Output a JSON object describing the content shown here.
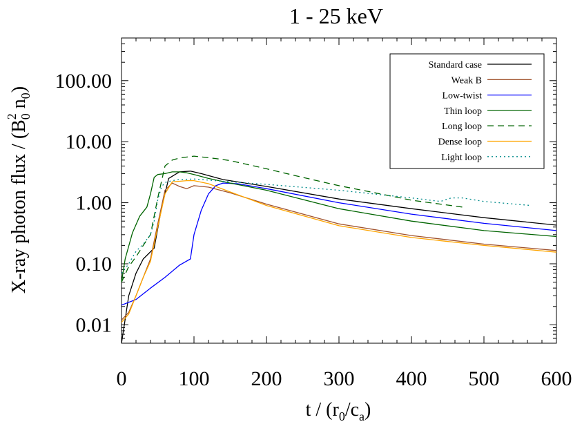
{
  "chart_data": {
    "type": "line",
    "title": "1 - 25 keV",
    "xlabel_parts": {
      "main": "t / (r",
      "sub1": "0",
      "mid": "/c",
      "sub2": "a",
      "end": ")"
    },
    "ylabel_parts": {
      "main": "X-ray photon flux / (B",
      "sub1": "0",
      "sup": "2",
      "mid": " n",
      "sub2": "0",
      "end": ")"
    },
    "xlim": [
      0,
      600
    ],
    "ylim": [
      0.005,
      500
    ],
    "yscale": "log",
    "x_ticks": [
      0,
      100,
      200,
      300,
      400,
      500,
      600
    ],
    "x_tick_labels": [
      "0",
      "100",
      "200",
      "300",
      "400",
      "500",
      "600"
    ],
    "y_ticks": [
      0.01,
      0.1,
      1,
      10,
      100
    ],
    "y_tick_labels": [
      "0.01",
      "0.10",
      "1.00",
      "10.00",
      "100.00"
    ],
    "legend_position": "top-right",
    "series": [
      {
        "name": "Standard case",
        "color": "#000000",
        "dash": "solid",
        "x": [
          0,
          10,
          20,
          30,
          45,
          55,
          65,
          80,
          95,
          110,
          140,
          200,
          300,
          400,
          500,
          600
        ],
        "y": [
          0.005,
          0.03,
          0.07,
          0.12,
          0.18,
          0.8,
          2.5,
          3.2,
          3.3,
          3.0,
          2.4,
          1.85,
          1.15,
          0.8,
          0.57,
          0.43
        ]
      },
      {
        "name": "Weak B",
        "color": "#a0522d",
        "dash": "solid",
        "x": [
          0,
          10,
          20,
          30,
          40,
          50,
          60,
          70,
          80,
          90,
          100,
          120,
          150,
          200,
          300,
          400,
          500,
          600
        ],
        "y": [
          0.012,
          0.016,
          0.03,
          0.06,
          0.12,
          0.45,
          1.6,
          2.1,
          1.85,
          1.7,
          1.9,
          1.8,
          1.45,
          0.95,
          0.45,
          0.29,
          0.21,
          0.165
        ]
      },
      {
        "name": "Low-twist",
        "color": "#0000ff",
        "dash": "solid",
        "x": [
          0,
          20,
          40,
          60,
          80,
          95,
          100,
          110,
          120,
          130,
          140,
          160,
          200,
          300,
          400,
          500,
          600
        ],
        "y": [
          0.021,
          0.026,
          0.04,
          0.06,
          0.095,
          0.12,
          0.3,
          0.75,
          1.4,
          1.9,
          2.1,
          2.05,
          1.7,
          1.0,
          0.65,
          0.46,
          0.35
        ]
      },
      {
        "name": "Thin loop",
        "color": "#006400",
        "dash": "solid",
        "x": [
          0,
          5,
          15,
          25,
          35,
          40,
          45,
          50,
          60,
          70,
          80,
          90,
          100,
          120,
          150,
          200,
          300,
          400,
          500,
          600
        ],
        "y": [
          0.05,
          0.12,
          0.32,
          0.6,
          0.85,
          1.4,
          2.6,
          2.9,
          3.0,
          3.2,
          3.2,
          3.1,
          2.9,
          2.5,
          2.1,
          1.6,
          0.8,
          0.5,
          0.35,
          0.28
        ]
      },
      {
        "name": "Long loop",
        "color": "#006400",
        "dash": "dashed",
        "x": [
          0,
          10,
          20,
          30,
          40,
          50,
          60,
          70,
          80,
          100,
          130,
          150,
          200,
          250,
          300,
          350,
          400,
          440,
          470
        ],
        "y": [
          0.05,
          0.09,
          0.13,
          0.2,
          0.3,
          1.2,
          4.0,
          5.0,
          5.4,
          5.8,
          5.3,
          4.9,
          3.6,
          2.6,
          1.9,
          1.45,
          1.1,
          0.95,
          0.85
        ]
      },
      {
        "name": "Dense loop",
        "color": "#ffa500",
        "dash": "solid",
        "x": [
          0,
          10,
          20,
          30,
          40,
          50,
          60,
          70,
          80,
          90,
          100,
          120,
          150,
          200,
          300,
          400,
          500,
          600
        ],
        "y": [
          0.011,
          0.015,
          0.03,
          0.06,
          0.11,
          0.4,
          1.4,
          2.2,
          2.25,
          2.3,
          2.3,
          2.05,
          1.5,
          0.9,
          0.42,
          0.27,
          0.2,
          0.155
        ]
      },
      {
        "name": "Light loop",
        "color": "#008b8b",
        "dash": "dotted",
        "x": [
          0,
          10,
          20,
          30,
          40,
          45,
          50,
          55,
          60,
          70,
          80,
          100,
          140,
          200,
          300,
          400,
          440,
          455,
          470,
          500,
          565
        ],
        "y": [
          0.07,
          0.1,
          0.16,
          0.21,
          0.3,
          0.5,
          1.1,
          1.8,
          2.15,
          2.3,
          2.4,
          2.45,
          2.25,
          2.0,
          1.6,
          1.2,
          1.05,
          1.2,
          1.2,
          1.05,
          0.9
        ]
      }
    ]
  }
}
